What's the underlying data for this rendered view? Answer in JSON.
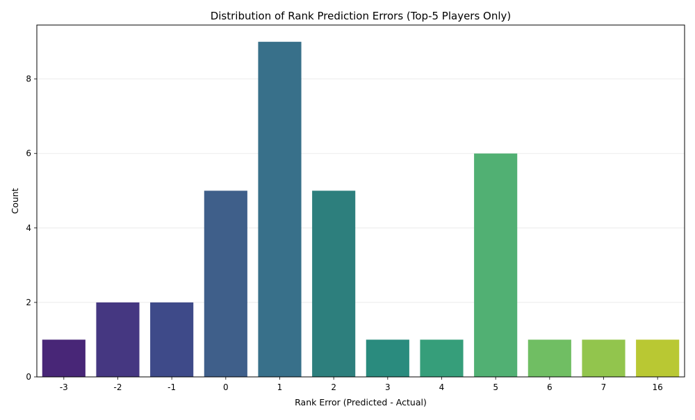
{
  "chart_data": {
    "type": "bar",
    "title": "Distribution of Rank Prediction Errors (Top-5 Players Only)",
    "xlabel": "Rank Error (Predicted - Actual)",
    "ylabel": "Count",
    "categories": [
      "-3",
      "-2",
      "-1",
      "0",
      "1",
      "2",
      "3",
      "4",
      "5",
      "6",
      "7",
      "16"
    ],
    "values": [
      1,
      2,
      2,
      5,
      9,
      5,
      1,
      1,
      6,
      1,
      1,
      1
    ],
    "colors": [
      "#482677",
      "#453781",
      "#3e4a89",
      "#3f5f8a",
      "#38708a",
      "#2d7f7d",
      "#2a8b7e",
      "#369e7a",
      "#51b073",
      "#70be63",
      "#92c54d",
      "#b9c833"
    ],
    "ylim": [
      0,
      9.45
    ],
    "yticks": [
      0,
      2,
      4,
      6,
      8
    ],
    "grid": "y",
    "legend": "none"
  }
}
